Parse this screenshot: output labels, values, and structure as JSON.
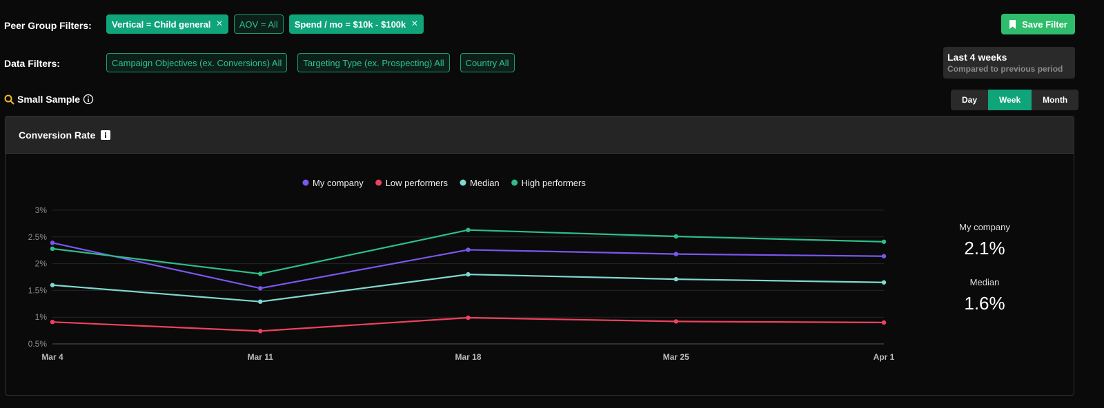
{
  "peer_group_filters": {
    "label": "Peer Group Filters:",
    "chips": [
      {
        "text": "Vertical = Child general",
        "filled": true
      },
      {
        "text": "AOV = All",
        "filled": false
      },
      {
        "text": "Spend / mo = $10k - $100k",
        "filled": true
      }
    ]
  },
  "save_button": "Save Filter",
  "data_filters": {
    "label": "Data Filters:",
    "chips": [
      {
        "text": "Campaign Objectives (ex. Conversions) All",
        "filled": false
      },
      {
        "text": "Targeting Type (ex. Prospecting) All",
        "filled": false
      },
      {
        "text": "Country All",
        "filled": false
      }
    ]
  },
  "period": {
    "title": "Last 4 weeks",
    "subtitle": "Compared to previous period"
  },
  "sample_note": "Small Sample",
  "granularity": {
    "options": [
      "Day",
      "Week",
      "Month"
    ],
    "selected": 1
  },
  "chart_data": {
    "type": "line",
    "title": "Conversion Rate",
    "x": [
      "Mar 4",
      "Mar 11",
      "Mar 18",
      "Mar 25",
      "Apr 1"
    ],
    "series": [
      {
        "name": "My company",
        "color": "#7b57f0",
        "values": [
          2.39,
          1.54,
          2.26,
          2.18,
          2.14
        ]
      },
      {
        "name": "Low performers",
        "color": "#f0415f",
        "values": [
          0.91,
          0.74,
          0.99,
          0.92,
          0.9
        ]
      },
      {
        "name": "Median",
        "color": "#7fd9d0",
        "values": [
          1.6,
          1.29,
          1.8,
          1.71,
          1.65
        ]
      },
      {
        "name": "High performers",
        "color": "#2cc088",
        "values": [
          2.28,
          1.81,
          2.63,
          2.51,
          2.41
        ]
      }
    ],
    "ylim": [
      0.5,
      3
    ],
    "yticks": [
      {
        "value": 0.5,
        "label": "0.5%"
      },
      {
        "value": 1,
        "label": "1%"
      },
      {
        "value": 1.5,
        "label": "1.5%"
      },
      {
        "value": 2,
        "label": "2%"
      },
      {
        "value": 2.5,
        "label": "2.5%"
      },
      {
        "value": 3,
        "label": "3%"
      }
    ],
    "grid": true
  },
  "summary": [
    {
      "label": "My company",
      "value": "2.1%"
    },
    {
      "label": "Median",
      "value": "1.6%"
    }
  ]
}
